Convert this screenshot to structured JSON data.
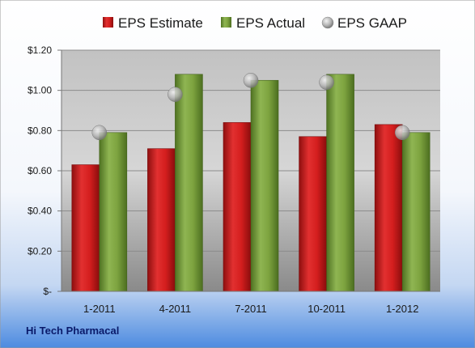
{
  "company": "Hi Tech Pharmacal",
  "chart_data": {
    "type": "bar",
    "categories": [
      "1-2011",
      "4-2011",
      "7-2011",
      "10-2011",
      "1-2012"
    ],
    "series": [
      {
        "name": "EPS Estimate",
        "kind": "bar",
        "color": "#d42020",
        "values": [
          0.63,
          0.71,
          0.84,
          0.77,
          0.83
        ]
      },
      {
        "name": "EPS Actual",
        "kind": "bar",
        "color": "#7ea540",
        "values": [
          0.79,
          1.08,
          1.05,
          1.08,
          0.79
        ]
      },
      {
        "name": "EPS GAAP",
        "kind": "marker",
        "color": "#b8b8b8",
        "values": [
          0.79,
          0.98,
          1.05,
          1.04,
          0.79
        ]
      }
    ],
    "yticks": [
      "$-",
      "$0.20",
      "$0.40",
      "$0.60",
      "$0.80",
      "$1.00",
      "$1.20"
    ],
    "ylim": [
      0,
      1.2
    ],
    "grid": true,
    "legend_position": "top"
  }
}
